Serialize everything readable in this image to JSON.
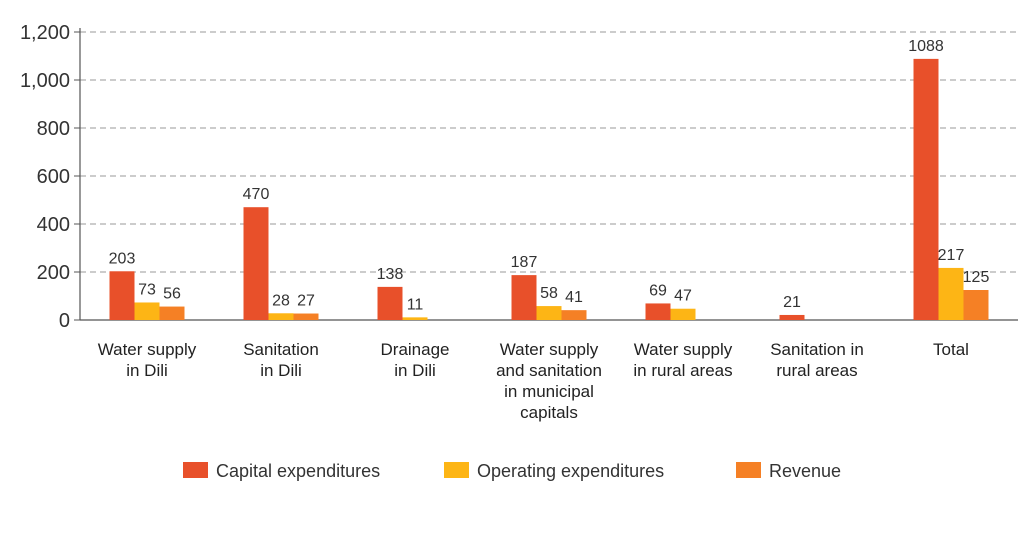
{
  "chart_data": {
    "type": "bar",
    "title": "",
    "xlabel": "",
    "ylabel": "",
    "ylim": [
      0,
      1200
    ],
    "yticks": [
      0,
      200,
      400,
      600,
      800,
      1000,
      1200
    ],
    "ytick_labels": [
      "0",
      "200",
      "400",
      "600",
      "800",
      "1,000",
      "1,200"
    ],
    "grid": true,
    "legend_position": "bottom",
    "categories": [
      [
        "Water supply",
        "in Dili"
      ],
      [
        "Sanitation",
        "in Dili"
      ],
      [
        "Drainage",
        "in Dili"
      ],
      [
        "Water supply",
        "and sanitation",
        "in municipal",
        "capitals"
      ],
      [
        "Water supply",
        "in rural areas"
      ],
      [
        "Sanitation in",
        "rural areas"
      ],
      [
        "Total"
      ]
    ],
    "series": [
      {
        "name": "Capital expenditures",
        "color": "#E8502A",
        "values": [
          203,
          470,
          138,
          187,
          69,
          21,
          1088
        ],
        "labels": [
          "203",
          "470",
          "138",
          "187",
          "69",
          "21",
          "1088"
        ]
      },
      {
        "name": "Operating expenditures",
        "color": "#FDB515",
        "values": [
          73,
          28,
          11,
          58,
          47,
          0,
          217
        ],
        "labels": [
          "73",
          "28",
          "11",
          "58",
          "47",
          "",
          "217"
        ]
      },
      {
        "name": "Revenue",
        "color": "#F58025",
        "values": [
          56,
          27,
          0,
          41,
          0,
          0,
          125
        ],
        "labels": [
          "56",
          "27",
          "",
          "41",
          "",
          "",
          "125"
        ]
      }
    ]
  }
}
